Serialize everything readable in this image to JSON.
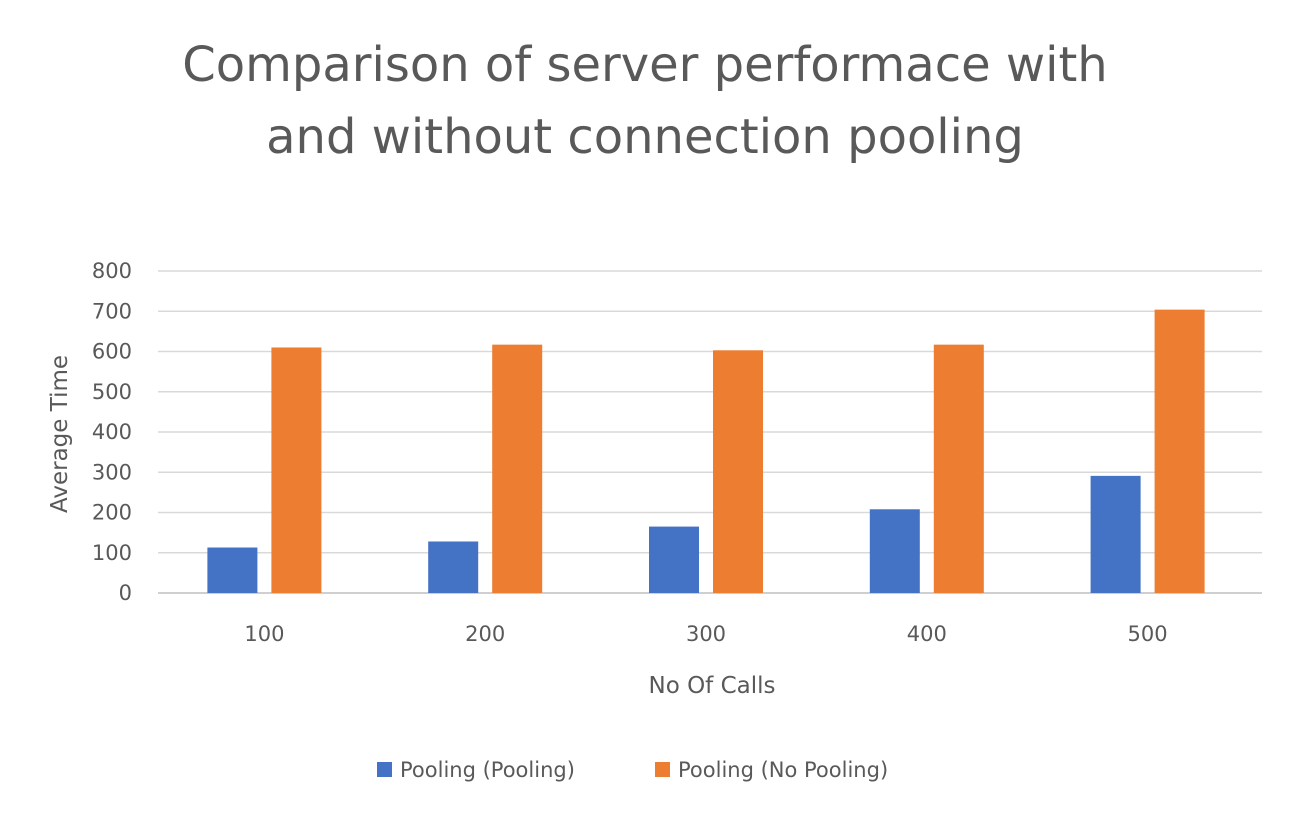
{
  "chart_data": {
    "type": "bar",
    "title_lines": [
      "Comparison of server performace with",
      "and without connection pooling"
    ],
    "xlabel": "No Of Calls",
    "ylabel": "Average Time",
    "categories": [
      "100",
      "200",
      "300",
      "400",
      "500"
    ],
    "ylim": [
      0,
      800
    ],
    "yticks": [
      0,
      100,
      200,
      300,
      400,
      500,
      600,
      700,
      800
    ],
    "grid": true,
    "legend_position": "bottom",
    "series": [
      {
        "name": "Pooling (Pooling)",
        "color": "#4472C4",
        "values": [
          113,
          128,
          165,
          208,
          291
        ]
      },
      {
        "name": "Pooling (No Pooling)",
        "color": "#ED7D31",
        "values": [
          610,
          617,
          603,
          617,
          704
        ]
      }
    ]
  }
}
